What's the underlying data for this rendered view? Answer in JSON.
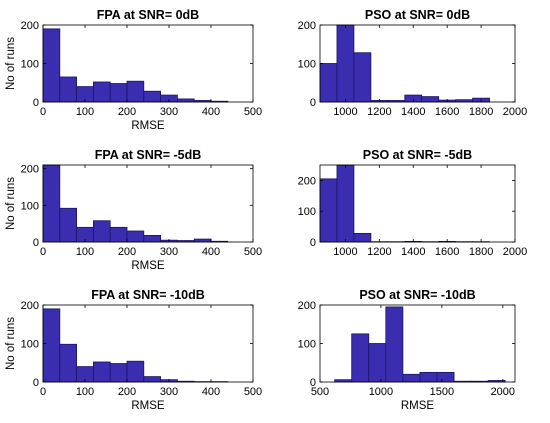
{
  "figure": {
    "bar_fill": "#3a2db0",
    "bar_edge": "#1a1466"
  },
  "chart_data": [
    {
      "type": "bar",
      "title": "FPA at SNR= 0dB",
      "xlabel": "RMSE",
      "ylabel": "No of runs",
      "xlim": [
        0,
        500
      ],
      "ylim": [
        0,
        200
      ],
      "xticks": [
        0,
        100,
        200,
        300,
        400,
        500
      ],
      "yticks": [
        0,
        100,
        200
      ],
      "bins": [
        {
          "x0": 0,
          "x1": 40,
          "count": 190
        },
        {
          "x0": 40,
          "x1": 80,
          "count": 65
        },
        {
          "x0": 80,
          "x1": 120,
          "count": 40
        },
        {
          "x0": 120,
          "x1": 160,
          "count": 52
        },
        {
          "x0": 160,
          "x1": 200,
          "count": 48
        },
        {
          "x0": 200,
          "x1": 240,
          "count": 54
        },
        {
          "x0": 240,
          "x1": 280,
          "count": 28
        },
        {
          "x0": 280,
          "x1": 320,
          "count": 18
        },
        {
          "x0": 320,
          "x1": 360,
          "count": 8
        },
        {
          "x0": 360,
          "x1": 400,
          "count": 4
        },
        {
          "x0": 400,
          "x1": 440,
          "count": 2
        }
      ]
    },
    {
      "type": "bar",
      "title": "PSO at SNR= 0dB",
      "xlabel": "",
      "ylabel": "",
      "xlim": [
        850,
        2000
      ],
      "ylim": [
        0,
        200
      ],
      "xticks": [
        1000,
        1200,
        1400,
        1600,
        1800,
        2000
      ],
      "yticks": [
        0,
        100,
        200
      ],
      "bins": [
        {
          "x0": 850,
          "x1": 950,
          "count": 100
        },
        {
          "x0": 950,
          "x1": 1050,
          "count": 205
        },
        {
          "x0": 1050,
          "x1": 1150,
          "count": 128
        },
        {
          "x0": 1150,
          "x1": 1250,
          "count": 4
        },
        {
          "x0": 1250,
          "x1": 1350,
          "count": 4
        },
        {
          "x0": 1350,
          "x1": 1450,
          "count": 18
        },
        {
          "x0": 1450,
          "x1": 1550,
          "count": 14
        },
        {
          "x0": 1550,
          "x1": 1650,
          "count": 5
        },
        {
          "x0": 1650,
          "x1": 1750,
          "count": 6
        },
        {
          "x0": 1750,
          "x1": 1850,
          "count": 10
        }
      ]
    },
    {
      "type": "bar",
      "title": "FPA at SNR= -5dB",
      "xlabel": "RMSE",
      "ylabel": "No of runs",
      "xlim": [
        0,
        500
      ],
      "ylim": [
        0,
        210
      ],
      "xticks": [
        0,
        100,
        200,
        300,
        400,
        500
      ],
      "yticks": [
        0,
        100,
        200
      ],
      "bins": [
        {
          "x0": 0,
          "x1": 40,
          "count": 210
        },
        {
          "x0": 40,
          "x1": 80,
          "count": 92
        },
        {
          "x0": 80,
          "x1": 120,
          "count": 40
        },
        {
          "x0": 120,
          "x1": 160,
          "count": 58
        },
        {
          "x0": 160,
          "x1": 200,
          "count": 40
        },
        {
          "x0": 200,
          "x1": 240,
          "count": 30
        },
        {
          "x0": 240,
          "x1": 280,
          "count": 18
        },
        {
          "x0": 280,
          "x1": 320,
          "count": 5
        },
        {
          "x0": 320,
          "x1": 360,
          "count": 4
        },
        {
          "x0": 360,
          "x1": 400,
          "count": 8
        },
        {
          "x0": 400,
          "x1": 440,
          "count": 2
        }
      ]
    },
    {
      "type": "bar",
      "title": "PSO at SNR= -5dB",
      "xlabel": "",
      "ylabel": "",
      "xlim": [
        850,
        2000
      ],
      "ylim": [
        0,
        250
      ],
      "xticks": [
        1000,
        1200,
        1400,
        1600,
        1800,
        2000
      ],
      "yticks": [
        0,
        100,
        200
      ],
      "bins": [
        {
          "x0": 850,
          "x1": 950,
          "count": 205
        },
        {
          "x0": 950,
          "x1": 1050,
          "count": 250
        },
        {
          "x0": 1050,
          "x1": 1150,
          "count": 28
        },
        {
          "x0": 1150,
          "x1": 1250,
          "count": 1
        },
        {
          "x0": 1250,
          "x1": 1350,
          "count": 1
        },
        {
          "x0": 1350,
          "x1": 1450,
          "count": 2
        },
        {
          "x0": 1450,
          "x1": 1550,
          "count": 1
        },
        {
          "x0": 1550,
          "x1": 1650,
          "count": 2
        },
        {
          "x0": 1650,
          "x1": 1750,
          "count": 1
        },
        {
          "x0": 1750,
          "x1": 1850,
          "count": 1
        }
      ]
    },
    {
      "type": "bar",
      "title": "FPA at SNR= -10dB",
      "xlabel": "RMSE",
      "ylabel": "No of runs",
      "xlim": [
        0,
        500
      ],
      "ylim": [
        0,
        200
      ],
      "xticks": [
        0,
        100,
        200,
        300,
        400,
        500
      ],
      "yticks": [
        0,
        100,
        200
      ],
      "bins": [
        {
          "x0": 0,
          "x1": 40,
          "count": 190
        },
        {
          "x0": 40,
          "x1": 80,
          "count": 98
        },
        {
          "x0": 80,
          "x1": 120,
          "count": 40
        },
        {
          "x0": 120,
          "x1": 160,
          "count": 52
        },
        {
          "x0": 160,
          "x1": 200,
          "count": 48
        },
        {
          "x0": 200,
          "x1": 240,
          "count": 54
        },
        {
          "x0": 240,
          "x1": 280,
          "count": 14
        },
        {
          "x0": 280,
          "x1": 320,
          "count": 6
        },
        {
          "x0": 320,
          "x1": 360,
          "count": 2
        },
        {
          "x0": 360,
          "x1": 400,
          "count": 1
        },
        {
          "x0": 400,
          "x1": 440,
          "count": 1
        }
      ]
    },
    {
      "type": "bar",
      "title": "PSO at SNR= -10dB",
      "xlabel": "RMSE",
      "ylabel": "",
      "xlim": [
        500,
        2100
      ],
      "ylim": [
        0,
        200
      ],
      "xticks": [
        500,
        1000,
        1500,
        2000
      ],
      "yticks": [
        0,
        100,
        200
      ],
      "bins": [
        {
          "x0": 620,
          "x1": 760,
          "count": 6
        },
        {
          "x0": 760,
          "x1": 900,
          "count": 125
        },
        {
          "x0": 900,
          "x1": 1040,
          "count": 100
        },
        {
          "x0": 1040,
          "x1": 1180,
          "count": 195
        },
        {
          "x0": 1180,
          "x1": 1320,
          "count": 20
        },
        {
          "x0": 1320,
          "x1": 1460,
          "count": 25
        },
        {
          "x0": 1460,
          "x1": 1600,
          "count": 25
        },
        {
          "x0": 1600,
          "x1": 1740,
          "count": 2
        },
        {
          "x0": 1740,
          "x1": 1880,
          "count": 2
        },
        {
          "x0": 1880,
          "x1": 2020,
          "count": 4
        }
      ]
    }
  ]
}
